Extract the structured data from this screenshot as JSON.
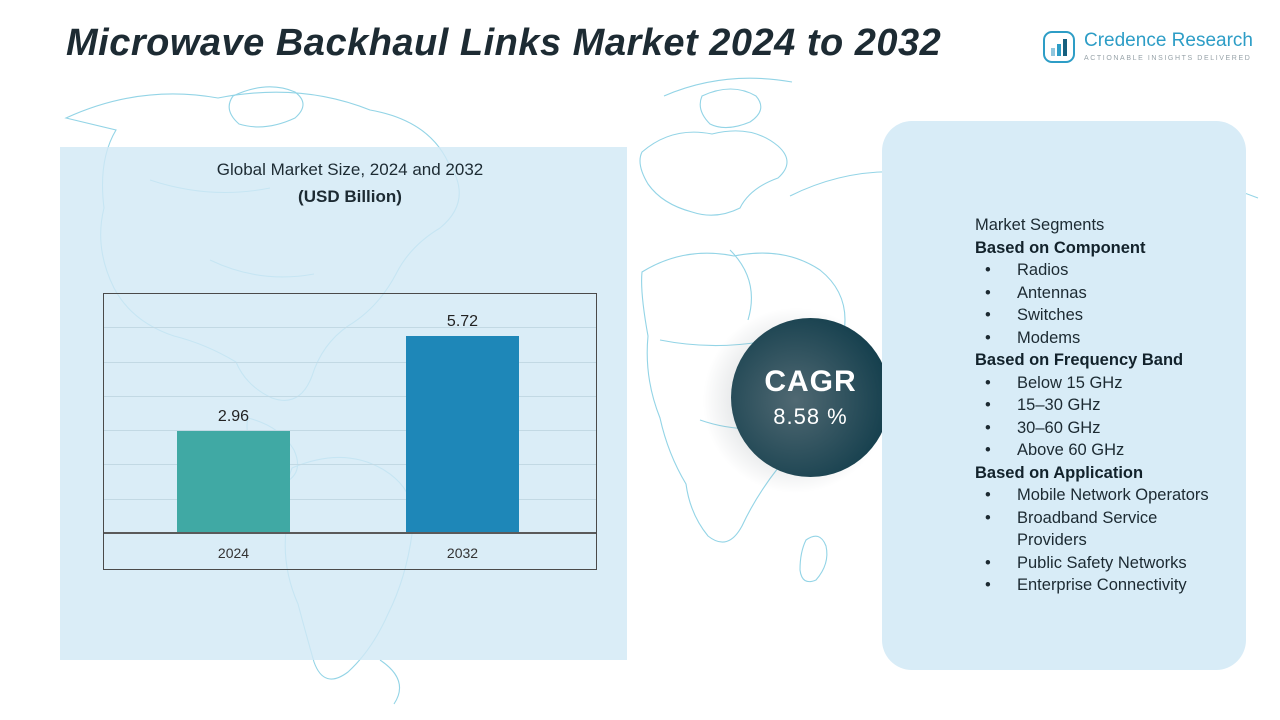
{
  "header": {
    "title": "Microwave Backhaul Links Market 2024 to 2032",
    "logo": {
      "name": "Credence Research",
      "tagline": "ACTIONABLE INSIGHTS DELIVERED",
      "icon": "bar-chart-logo-icon",
      "brand_color": "#2d9dc6"
    }
  },
  "chart_data": {
    "type": "bar",
    "title": "Global Market Size, 2024 and 2032",
    "subtitle": "(USD Billion)",
    "categories": [
      "2024",
      "2032"
    ],
    "values": [
      2.96,
      5.72
    ],
    "bar_colors": [
      "#40a9a4",
      "#1e87b8"
    ],
    "xlabel": "",
    "ylabel": "",
    "ylim": [
      0,
      7
    ],
    "grid": true,
    "legend": "none",
    "unit": "USD Billion"
  },
  "cagr_badge": {
    "label": "CAGR",
    "value": "8.58 %",
    "background": "#16404e"
  },
  "segments_panel": {
    "title": "Market Segments",
    "background": "#d8ecf7",
    "sections": [
      {
        "heading": "Based on Component",
        "items": [
          "Radios",
          "Antennas",
          "Switches",
          "Modems"
        ]
      },
      {
        "heading": "Based on Frequency Band",
        "items": [
          "Below 15 GHz",
          "15–30 GHz",
          "30–60 GHz",
          "Above 60 GHz"
        ]
      },
      {
        "heading": "Based on Application",
        "items": [
          "Mobile Network Operators",
          "Broadband Service Providers",
          "Public Safety Networks",
          "Enterprise Connectivity"
        ]
      }
    ]
  }
}
